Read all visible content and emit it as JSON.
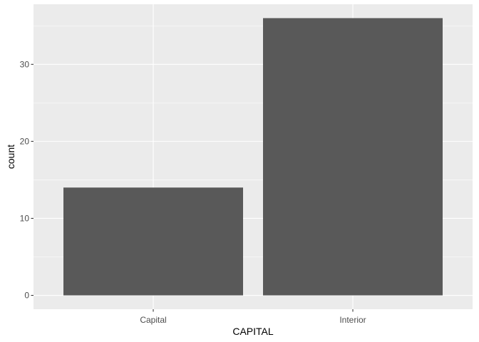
{
  "chart_data": {
    "type": "bar",
    "categories": [
      "Capital",
      "Interior"
    ],
    "values": [
      14,
      36
    ],
    "xlabel": "CAPITAL",
    "ylabel": "count",
    "ylim": [
      -1.8,
      37.8
    ],
    "yticks": [
      0,
      10,
      20,
      30
    ],
    "grid": true,
    "legend": "none",
    "colors": {
      "panel_background": "#EBEBEB",
      "grid": "#FFFFFF",
      "bar_fill": "#595959",
      "tick_text": "#4D4D4D"
    }
  }
}
